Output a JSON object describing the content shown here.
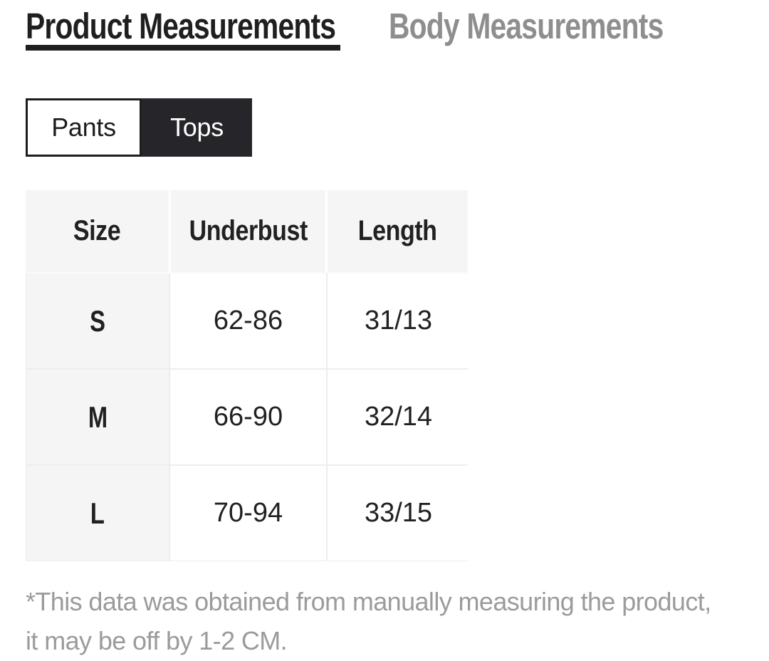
{
  "tabs": {
    "product": {
      "label": "Product Measurements",
      "active": true
    },
    "body": {
      "label": "Body Measurements",
      "active": false
    }
  },
  "category_toggle": {
    "pants_label": "Pants",
    "tops_label": "Tops",
    "selected": "Tops"
  },
  "size_table": {
    "columns": [
      "Size",
      "Underbust",
      "Length"
    ],
    "rows": [
      {
        "size": "S",
        "underbust": "62-86",
        "length": "31/13"
      },
      {
        "size": "M",
        "underbust": "66-90",
        "length": "32/14"
      },
      {
        "size": "L",
        "underbust": "70-94",
        "length": "33/15"
      }
    ]
  },
  "disclaimer": {
    "lines": [
      "*This data was obtained from manually measuring the product,",
      "it may be off by 1-2 CM."
    ],
    "full_text": "*This data was obtained from manually measuring the product, it may be off by 1-2 CM."
  },
  "colors": {
    "tab_active_text": "#1f1f1f",
    "tab_active_underline": "#1f1f1f",
    "tab_inactive_text": "#8e8e8e",
    "toggle_selected_bg": "#26262a",
    "toggle_selected_text": "#ffffff",
    "toggle_unselected_border": "#1d1d1f",
    "table_header_bg": "#f5f5f5",
    "table_border": "#ededed",
    "cell_text": "#212121",
    "disclaimer_text": "#9b9b9b"
  }
}
